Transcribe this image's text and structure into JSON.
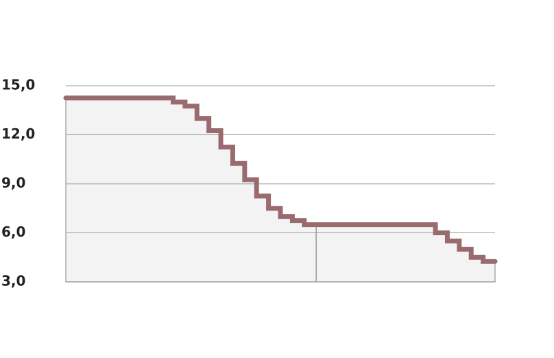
{
  "chart_data": {
    "type": "line",
    "step": "post",
    "x": [
      0,
      9,
      10,
      11,
      12,
      13,
      14,
      15,
      16,
      17,
      18,
      19,
      20,
      31,
      32,
      33,
      34,
      35,
      36
    ],
    "series": [
      {
        "color": "#9a6b6e",
        "values": [
          14.25,
          14,
          13.75,
          13,
          12.25,
          11.25,
          10.25,
          9.25,
          8.25,
          7.5,
          7,
          6.75,
          6.5,
          6,
          5.5,
          5,
          4.5,
          4.25,
          4.25
        ]
      }
    ],
    "xlim": [
      0,
      36
    ],
    "xticks": [
      21
    ],
    "ylim": [
      3,
      15
    ],
    "yticks": [
      {
        "value": 3,
        "label": "3,0"
      },
      {
        "value": 6,
        "label": "6,0"
      },
      {
        "value": 9,
        "label": "9,0"
      },
      {
        "value": 12,
        "label": "12,0"
      },
      {
        "value": 15,
        "label": "15,0"
      }
    ],
    "grid": true
  }
}
